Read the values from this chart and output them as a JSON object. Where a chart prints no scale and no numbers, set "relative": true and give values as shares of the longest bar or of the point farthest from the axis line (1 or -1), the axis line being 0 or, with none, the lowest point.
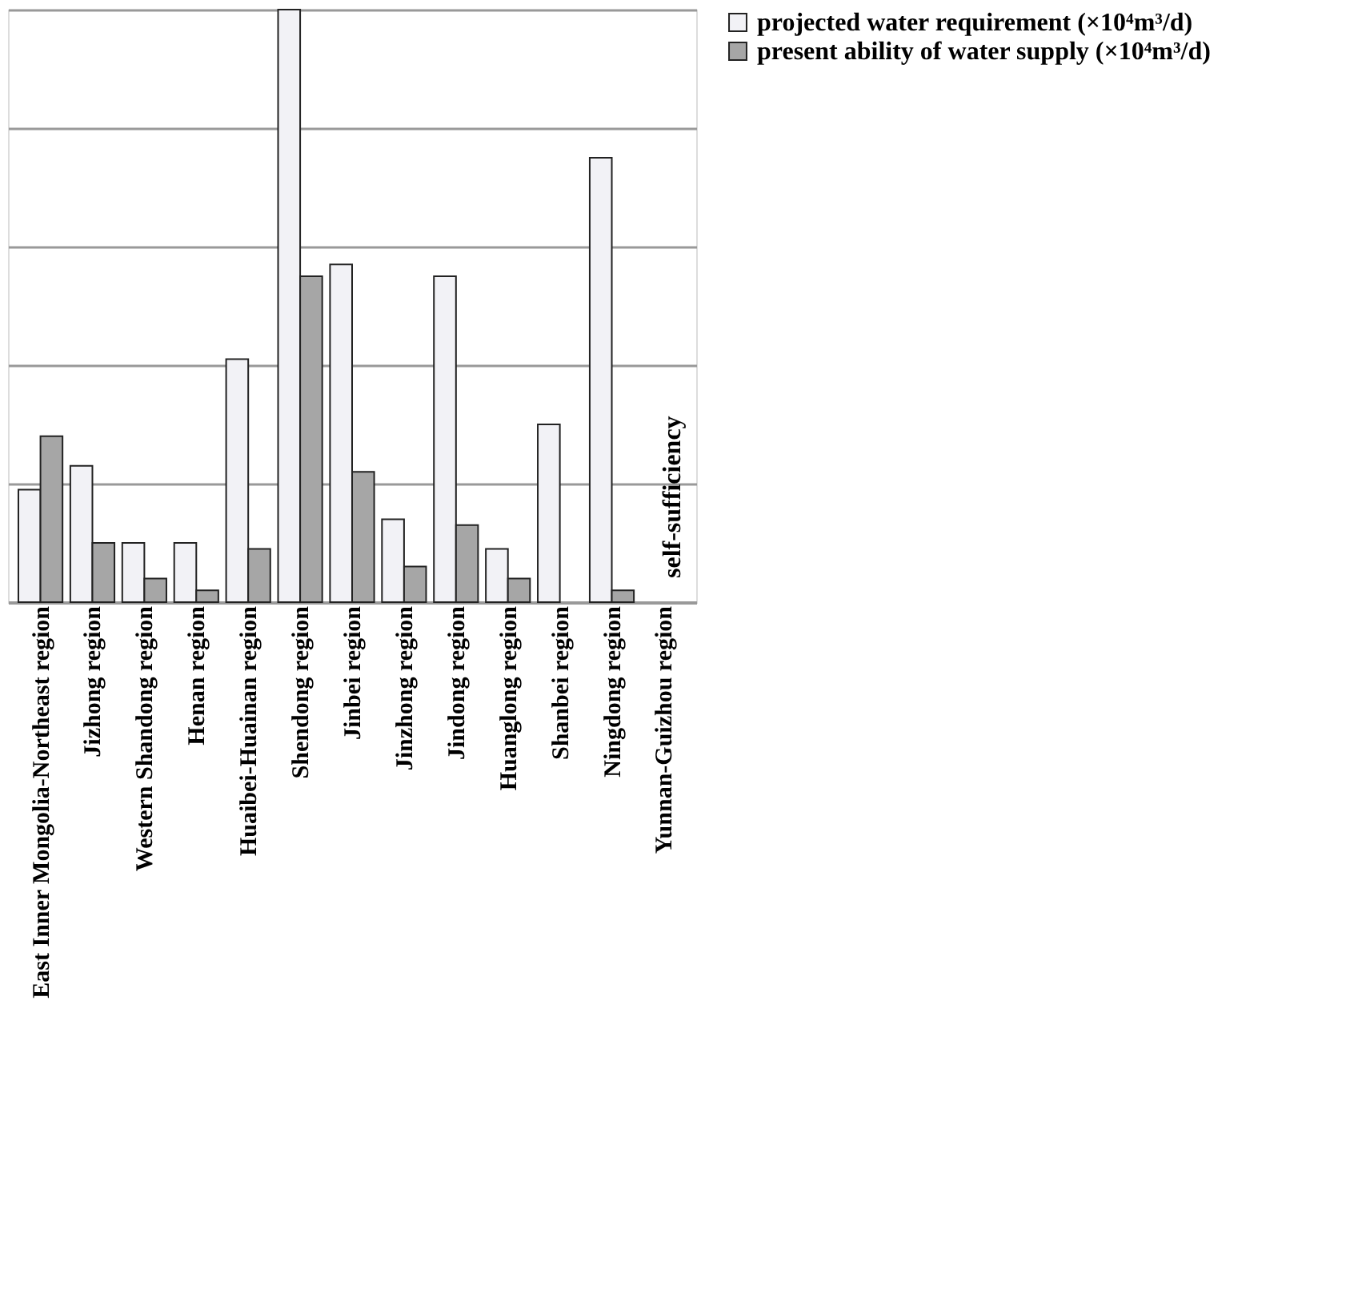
{
  "chart_data": {
    "type": "bar",
    "relative": true,
    "grid": "y",
    "legend": "right",
    "categories": [
      "East Inner Mongolia-Northeast region",
      "Jizhong region",
      "Western Shandong region",
      "Henan region",
      "Huaibei-Huainan region",
      "Shendong region",
      "Jinbei region",
      "Jinzhong region",
      "Jindong region",
      "Huanglong region",
      "Shanbei region",
      "Ningdong region",
      "Yunnan-Guizhou region"
    ],
    "series": [
      {
        "name": "projected water requirement (×10⁴m³/d)",
        "color": "#f2f2f6",
        "values": [
          0.19,
          0.23,
          0.1,
          0.1,
          0.41,
          1,
          0.57,
          0.14,
          0.55,
          0.09,
          0.3,
          0.75,
          0
        ]
      },
      {
        "name": "present ability of water supply (×10⁴m³/d)",
        "color": "#a6a6a6",
        "values": [
          0.28,
          0.1,
          0.04,
          0.02,
          0.09,
          0.55,
          0.22,
          0.06,
          0.13,
          0.04,
          0,
          0.02,
          0
        ]
      }
    ],
    "annotations": [
      "self-sufficiency"
    ]
  }
}
